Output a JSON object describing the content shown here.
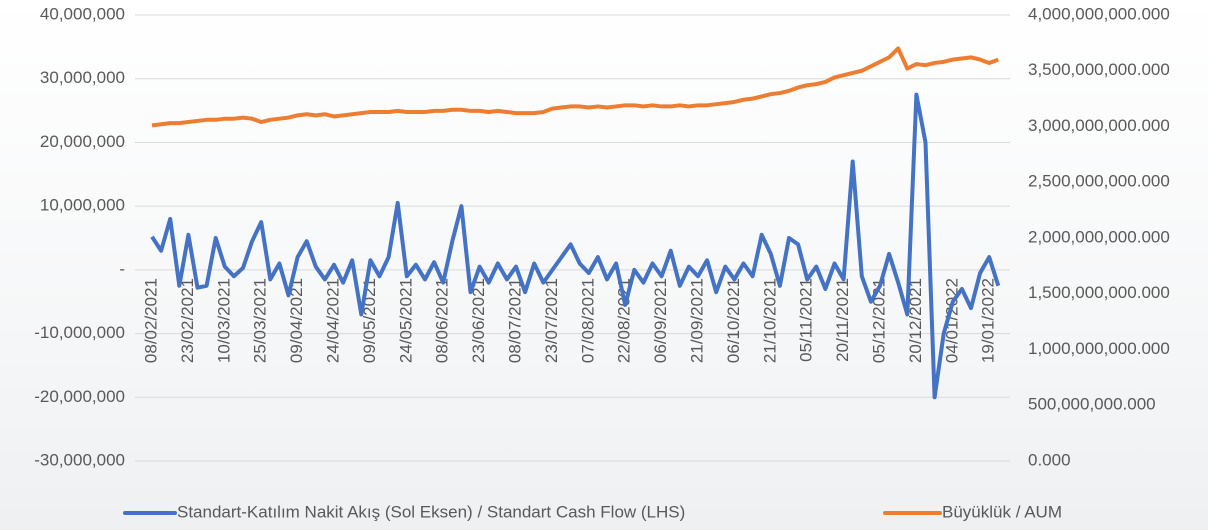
{
  "chart_data": {
    "type": "line",
    "categories": [
      "08/02/2021",
      null,
      null,
      null,
      "23/02/2021",
      null,
      null,
      null,
      "10/03/2021",
      null,
      null,
      null,
      "25/03/2021",
      null,
      null,
      null,
      "09/04/2021",
      null,
      null,
      null,
      "24/04/2021",
      null,
      null,
      null,
      "09/05/2021",
      null,
      null,
      null,
      "24/05/2021",
      null,
      null,
      null,
      "08/06/2021",
      null,
      null,
      null,
      "23/06/2021",
      null,
      null,
      null,
      "08/07/2021",
      null,
      null,
      null,
      "23/07/2021",
      null,
      null,
      null,
      "07/08/2021",
      null,
      null,
      null,
      "22/08/2021",
      null,
      null,
      null,
      "06/09/2021",
      null,
      null,
      null,
      "21/09/2021",
      null,
      null,
      null,
      "06/10/2021",
      null,
      null,
      null,
      "21/10/2021",
      null,
      null,
      null,
      "05/11/2021",
      null,
      null,
      null,
      "20/11/2021",
      null,
      null,
      null,
      "05/12/2021",
      null,
      null,
      null,
      "20/12/2021",
      null,
      null,
      null,
      "04/01/2022",
      null,
      null,
      null,
      "19/01/2022",
      null
    ],
    "series": [
      {
        "name": "Standart-Katılım Nakit Akış (Sol Eksen) / Standart Cash Flow (LHS)",
        "color": "#4472c4",
        "axis": "y",
        "values": [
          5200000.0,
          3000000.0,
          8000000.0,
          -2500000.0,
          5500000.0,
          -2800000.0,
          -2500000.0,
          5000000.0,
          500000.0,
          -1000000.0,
          300000.0,
          4500000.0,
          7500000.0,
          -1500000.0,
          1000000.0,
          -4000000.0,
          2000000.0,
          4500000.0,
          500000.0,
          -1500000.0,
          800000.0,
          -2000000.0,
          1500000.0,
          -7000000.0,
          1500000.0,
          -1000000.0,
          2000000.0,
          10500000.0,
          -1000000.0,
          800000.0,
          -1500000.0,
          1200000.0,
          -2000000.0,
          4500000.0,
          10000000.0,
          -3500000.0,
          500000.0,
          -2000000.0,
          1000000.0,
          -1500000.0,
          500000.0,
          -3500000.0,
          1000000.0,
          -2000000.0,
          0,
          2000000.0,
          4000000.0,
          1000000.0,
          -500000.0,
          2000000.0,
          -1500000.0,
          1000000.0,
          -5500000.0,
          0,
          -2000000.0,
          1000000.0,
          -1000000.0,
          3000000.0,
          -2500000.0,
          500000.0,
          -1000000.0,
          1500000.0,
          -3500000.0,
          500000.0,
          -1500000.0,
          1000000.0,
          -1000000.0,
          5500000.0,
          2500000.0,
          -2500000.0,
          5000000.0,
          4000000.0,
          -1500000.0,
          500000.0,
          -3000000.0,
          1000000.0,
          -1500000.0,
          17000000.0,
          -1000000.0,
          -5000000.0,
          -2500000.0,
          2500000.0,
          -2000000.0,
          -7000000.0,
          27500000.0,
          20000000.0,
          -20000000.0,
          -10000000.0,
          -5000000.0,
          -3000000.0,
          -6000000.0,
          -500000.0,
          2000000.0,
          -2500000.0
        ]
      },
      {
        "name": "Büyüklük / AUM",
        "color": "#ed7d31",
        "axis": "y2",
        "values": [
          3010000000000.0,
          3020000000000.0,
          3030000000000.0,
          3030000000000.0,
          3040000000000.0,
          3050000000000.0,
          3060000000000.0,
          3060000000000.0,
          3070000000000.0,
          3070000000000.0,
          3080000000000.0,
          3070000000000.0,
          3040000000000.0,
          3060000000000.0,
          3070000000000.0,
          3080000000000.0,
          3100000000000.0,
          3110000000000.0,
          3100000000000.0,
          3110000000000.0,
          3090000000000.0,
          3100000000000.0,
          3110000000000.0,
          3120000000000.0,
          3130000000000.0,
          3130000000000.0,
          3130000000000.0,
          3140000000000.0,
          3130000000000.0,
          3130000000000.0,
          3130000000000.0,
          3140000000000.0,
          3140000000000.0,
          3150000000000.0,
          3150000000000.0,
          3140000000000.0,
          3140000000000.0,
          3130000000000.0,
          3140000000000.0,
          3130000000000.0,
          3120000000000.0,
          3120000000000.0,
          3120000000000.0,
          3130000000000.0,
          3160000000000.0,
          3170000000000.0,
          3180000000000.0,
          3180000000000.0,
          3170000000000.0,
          3180000000000.0,
          3170000000000.0,
          3180000000000.0,
          3190000000000.0,
          3190000000000.0,
          3180000000000.0,
          3190000000000.0,
          3180000000000.0,
          3180000000000.0,
          3190000000000.0,
          3180000000000.0,
          3190000000000.0,
          3190000000000.0,
          3200000000000.0,
          3210000000000.0,
          3220000000000.0,
          3240000000000.0,
          3250000000000.0,
          3270000000000.0,
          3290000000000.0,
          3300000000000.0,
          3320000000000.0,
          3350000000000.0,
          3370000000000.0,
          3380000000000.0,
          3400000000000.0,
          3440000000000.0,
          3460000000000.0,
          3480000000000.0,
          3500000000000.0,
          3540000000000.0,
          3580000000000.0,
          3620000000000.0,
          3700000000000.0,
          3520000000000.0,
          3560000000000.0,
          3550000000000.0,
          3570000000000.0,
          3580000000000.0,
          3600000000000.0,
          3610000000000.0,
          3620000000000.0,
          3600000000000.0,
          3570000000000.0,
          3600000000000.0
        ]
      }
    ],
    "ylim": [
      -30000000,
      40000000
    ],
    "yticks": [
      {
        "value": -30000000,
        "label": "-30,000,000"
      },
      {
        "value": -20000000,
        "label": "-20,000,000"
      },
      {
        "value": -10000000,
        "label": "-10,000,000"
      },
      {
        "value": 0,
        "label": "-"
      },
      {
        "value": 10000000,
        "label": "10,000,000"
      },
      {
        "value": 20000000,
        "label": "20,000,000"
      },
      {
        "value": 30000000,
        "label": "30,000,000"
      },
      {
        "value": 40000000,
        "label": "40,000,000"
      }
    ],
    "y2lim": [
      0,
      4000000000000
    ],
    "y2ticks": [
      {
        "value": 0,
        "label": "0.000"
      },
      {
        "value": 500000000000,
        "label": "500,000,000.000"
      },
      {
        "value": 1000000000000,
        "label": "1,000,000,000.000"
      },
      {
        "value": 1500000000000,
        "label": "1,500,000,000.000"
      },
      {
        "value": 2000000000000,
        "label": "2,000,000,000.000"
      },
      {
        "value": 2500000000000,
        "label": "2,500,000,000.000"
      },
      {
        "value": 3000000000000,
        "label": "3,000,000,000.000"
      },
      {
        "value": 3500000000000,
        "label": "3,500,000,000.000"
      },
      {
        "value": 4000000000000,
        "label": "4,000,000,000.000"
      }
    ],
    "grid": true,
    "legend": "bottom"
  }
}
